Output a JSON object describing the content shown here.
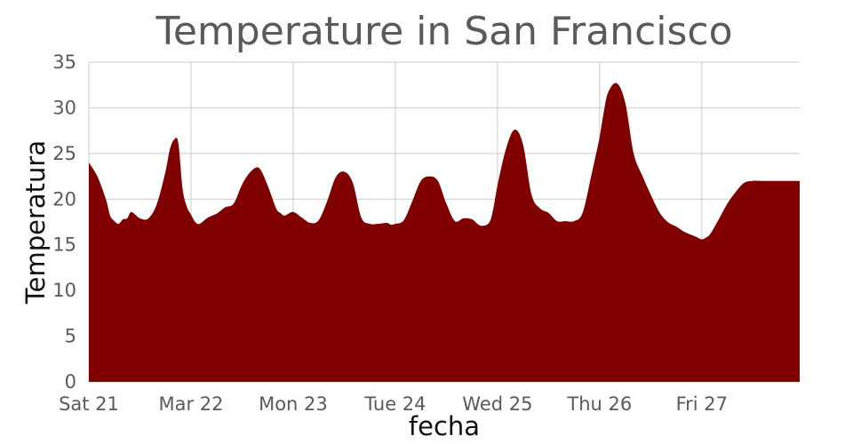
{
  "chart_data": {
    "type": "area",
    "title": "Temperature in San Francisco",
    "xlabel": "fecha",
    "ylabel": "Temperatura",
    "ylim": [
      0,
      35
    ],
    "y_ticks": [
      0,
      5,
      10,
      15,
      20,
      25,
      30,
      35
    ],
    "xlim": [
      0,
      167
    ],
    "x_ticks": [
      {
        "x": 0,
        "label": "Sat 21"
      },
      {
        "x": 24,
        "label": "Mar 22"
      },
      {
        "x": 48,
        "label": "Mon 23"
      },
      {
        "x": 72,
        "label": "Tue 24"
      },
      {
        "x": 96,
        "label": "Wed 25"
      },
      {
        "x": 120,
        "label": "Thu 26"
      },
      {
        "x": 144,
        "label": "Fri 27"
      }
    ],
    "grid": true,
    "fill_color": "#800000",
    "series": [
      {
        "x": [
          0,
          2,
          4,
          5,
          6,
          7,
          8,
          9,
          10,
          12,
          14,
          16,
          18,
          19,
          20,
          21,
          22,
          23,
          24,
          25,
          26,
          28,
          30,
          32,
          34,
          36,
          38,
          40,
          42,
          44,
          45,
          46,
          48,
          50,
          52,
          54,
          56,
          58,
          60,
          62,
          64,
          66,
          68,
          70,
          71,
          72,
          74,
          76,
          78,
          80,
          82,
          84,
          86,
          88,
          90,
          92,
          94,
          95,
          96,
          98,
          100,
          102,
          104,
          106,
          108,
          110,
          112,
          114,
          116,
          118,
          119,
          120,
          121,
          122,
          124,
          126,
          128,
          130,
          132,
          134,
          136,
          138,
          140,
          142,
          143,
          144,
          145,
          146,
          148,
          150,
          152,
          154,
          156,
          158,
          160,
          162,
          164,
          166,
          167
        ],
        "values": [
          24,
          22.5,
          20,
          18.2,
          17.6,
          17.3,
          17.8,
          17.9,
          18.6,
          17.9,
          17.9,
          19.5,
          23,
          25.4,
          26.5,
          26.2,
          21.2,
          19.2,
          18.3,
          17.5,
          17.3,
          18,
          18.4,
          19.1,
          19.5,
          21.6,
          23,
          23.4,
          21.5,
          19,
          18.5,
          18.2,
          18.6,
          18,
          17.4,
          17.7,
          19.8,
          22.4,
          23,
          21.8,
          18,
          17.3,
          17.3,
          17.4,
          17.2,
          17.3,
          17.7,
          19.8,
          22,
          22.5,
          22,
          19.5,
          17.6,
          17.9,
          17.8,
          17.1,
          17.4,
          18.9,
          21.5,
          25.5,
          27.6,
          26,
          20.5,
          19,
          18.5,
          17.6,
          17.6,
          17.6,
          18.5,
          22.5,
          24.6,
          26.8,
          29.6,
          31.7,
          32.7,
          30.6,
          25,
          22.6,
          20.5,
          18.6,
          17.5,
          17,
          16.4,
          16,
          15.8,
          15.6,
          15.8,
          16.2,
          17.8,
          19.5,
          20.8,
          21.8,
          22,
          22,
          22,
          22,
          22,
          22,
          22
        ]
      }
    ]
  }
}
